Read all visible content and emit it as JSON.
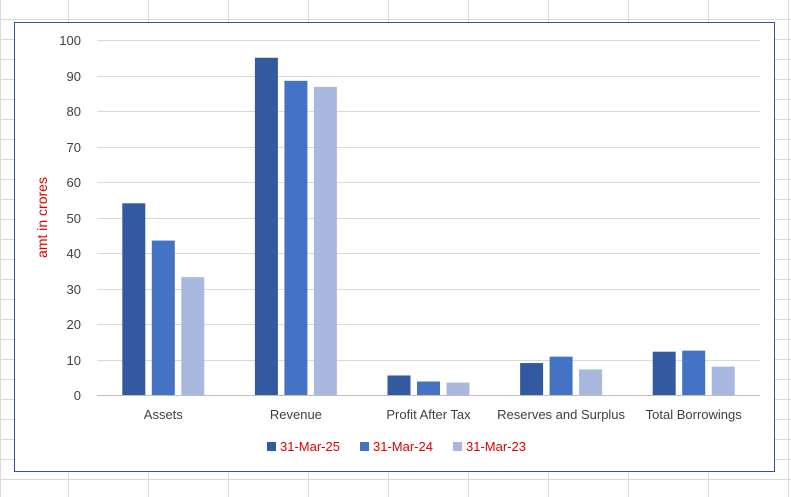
{
  "chart_data": {
    "type": "bar",
    "title": "",
    "xlabel": "",
    "ylabel": "amt in crores",
    "ylim": [
      0,
      100
    ],
    "yticks": [
      0,
      10,
      20,
      30,
      40,
      50,
      60,
      70,
      80,
      90,
      100
    ],
    "grid": true,
    "legend_position": "bottom",
    "categories": [
      "Assets",
      "Revenue",
      "Profit After Tax",
      "Reserves and Surplus",
      "Total Borrowings"
    ],
    "series": [
      {
        "name": "31-Mar-25",
        "color": "#335aa0",
        "values": [
          54,
          95,
          5.5,
          9,
          12.2
        ]
      },
      {
        "name": "31-Mar-24",
        "color": "#4472c4",
        "values": [
          43.5,
          88.5,
          3.8,
          10.8,
          12.5
        ]
      },
      {
        "name": "31-Mar-23",
        "color": "#a9b8de",
        "values": [
          33.2,
          86.8,
          3.5,
          7.2,
          8
        ]
      }
    ]
  }
}
